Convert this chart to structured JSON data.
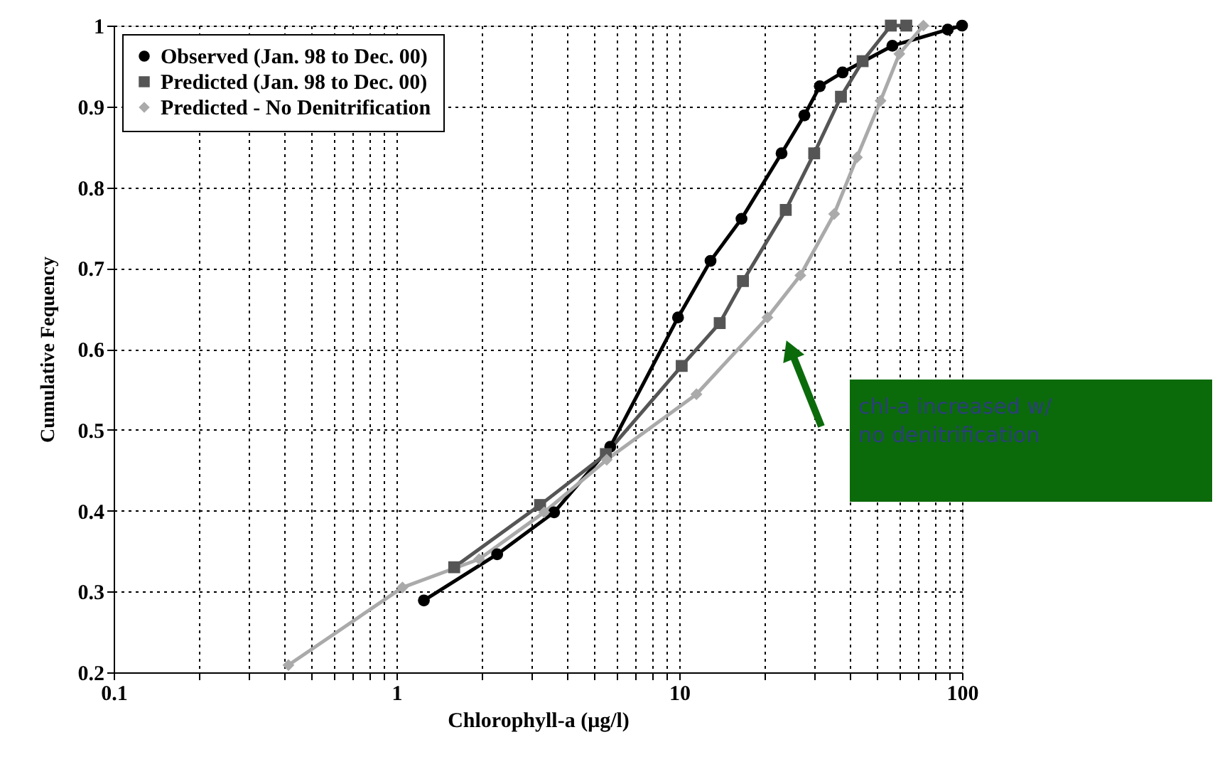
{
  "chart_data": {
    "type": "line",
    "xlabel": "Chlorophyll-a (μg/l)",
    "ylabel": "Cumulative Fequency",
    "log": "x",
    "grid": true,
    "legend": "top left",
    "line_style": "solid",
    "xlim": [
      0.1,
      100
    ],
    "ylim": [
      0.2,
      1
    ],
    "xticks": [
      0.1,
      {
        "value": 0.2,
        "label": null
      },
      {
        "value": 0.3,
        "label": null
      },
      {
        "value": 0.4,
        "label": null
      },
      {
        "value": 0.5,
        "label": null
      },
      {
        "value": 0.6,
        "label": null
      },
      {
        "value": 0.7,
        "label": null
      },
      {
        "value": 0.8,
        "label": null
      },
      {
        "value": 0.9,
        "label": null
      },
      1,
      {
        "value": 2,
        "label": null
      },
      {
        "value": 3,
        "label": null
      },
      {
        "value": 4,
        "label": null
      },
      {
        "value": 5,
        "label": null
      },
      {
        "value": 6,
        "label": null
      },
      {
        "value": 7,
        "label": null
      },
      {
        "value": 8,
        "label": null
      },
      {
        "value": 9,
        "label": null
      },
      10,
      {
        "value": 20,
        "label": null
      },
      {
        "value": 30,
        "label": null
      },
      {
        "value": 40,
        "label": null
      },
      {
        "value": 50,
        "label": null
      },
      {
        "value": 60,
        "label": null
      },
      {
        "value": 70,
        "label": null
      },
      {
        "value": 80,
        "label": null
      },
      {
        "value": 90,
        "label": null
      },
      100
    ],
    "yticks": [
      0.2,
      0.3,
      0.4,
      0.5,
      0.6,
      0.7,
      0.8,
      0.9,
      1
    ],
    "series": [
      {
        "name": "Observed (Jan. 98 to Dec. 00)",
        "color": "#000000",
        "marker": "circle",
        "x": [
          1.25,
          2.27,
          3.61,
          5.7,
          9.9,
          12.9,
          16.6,
          23,
          27.7,
          31.4,
          37.8,
          56.7,
          89,
          100
        ],
        "values": [
          0.289,
          0.346,
          0.398,
          0.479,
          0.639,
          0.709,
          0.761,
          0.842,
          0.889,
          0.925,
          0.942,
          0.975,
          0.995,
          1.0
        ]
      },
      {
        "name": "Predicted (Jan. 98 to Dec. 00)",
        "color": "#555555",
        "marker": "square",
        "x": [
          1.6,
          3.22,
          5.5,
          10.2,
          13.9,
          16.8,
          23.8,
          30,
          37.3,
          44.5,
          56,
          63.5
        ],
        "values": [
          0.33,
          0.407,
          0.47,
          0.579,
          0.632,
          0.684,
          0.772,
          0.842,
          0.912,
          0.956,
          1.0,
          1.0
        ]
      },
      {
        "name": "Predicted - No Denitrification",
        "color": "#aaaaaa",
        "marker": "diamond",
        "x": [
          0.415,
          1.05,
          1.96,
          3.33,
          5.54,
          11.5,
          20.5,
          26.8,
          35.3,
          42.5,
          51.5,
          60,
          73
        ],
        "values": [
          0.209,
          0.305,
          0.34,
          0.398,
          0.463,
          0.544,
          0.639,
          0.691,
          0.767,
          0.837,
          0.907,
          0.965,
          1.0
        ]
      }
    ],
    "annotations": [
      "chl-a increased w/\nno denitrification"
    ]
  }
}
